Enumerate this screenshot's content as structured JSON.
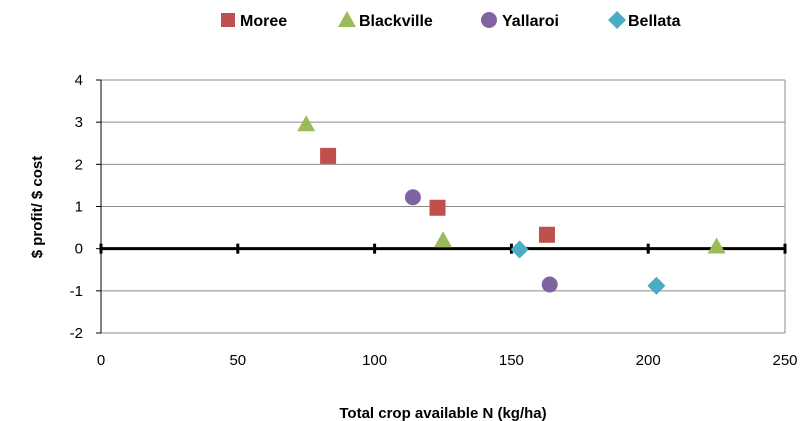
{
  "chart_data": {
    "type": "scatter",
    "title": "",
    "xlabel": "Total crop available N (kg/ha)",
    "ylabel": "$ profit/ $ cost",
    "xlim": [
      0,
      250
    ],
    "ylim": [
      -2,
      4
    ],
    "xticks": [
      0,
      50,
      100,
      150,
      200,
      250
    ],
    "yticks": [
      -2,
      -1,
      0,
      1,
      2,
      3,
      4
    ],
    "grid": "horizontal",
    "legend_position": "top",
    "series": [
      {
        "name": "Moree",
        "marker": "square",
        "color": "#c0504d",
        "points": [
          [
            83,
            2.2
          ],
          [
            123,
            0.97
          ],
          [
            163,
            0.33
          ]
        ]
      },
      {
        "name": "Blackville",
        "marker": "triangle",
        "color": "#9bbb59",
        "points": [
          [
            75,
            2.95
          ],
          [
            125,
            0.2
          ],
          [
            225,
            0.05
          ]
        ]
      },
      {
        "name": "Yallaroi",
        "marker": "circle",
        "color": "#8064a2",
        "points": [
          [
            114,
            1.22
          ],
          [
            164,
            -0.85
          ]
        ]
      },
      {
        "name": "Bellata",
        "marker": "diamond",
        "color": "#4bacc6",
        "points": [
          [
            153,
            -0.02
          ],
          [
            203,
            -0.88
          ]
        ]
      }
    ]
  }
}
